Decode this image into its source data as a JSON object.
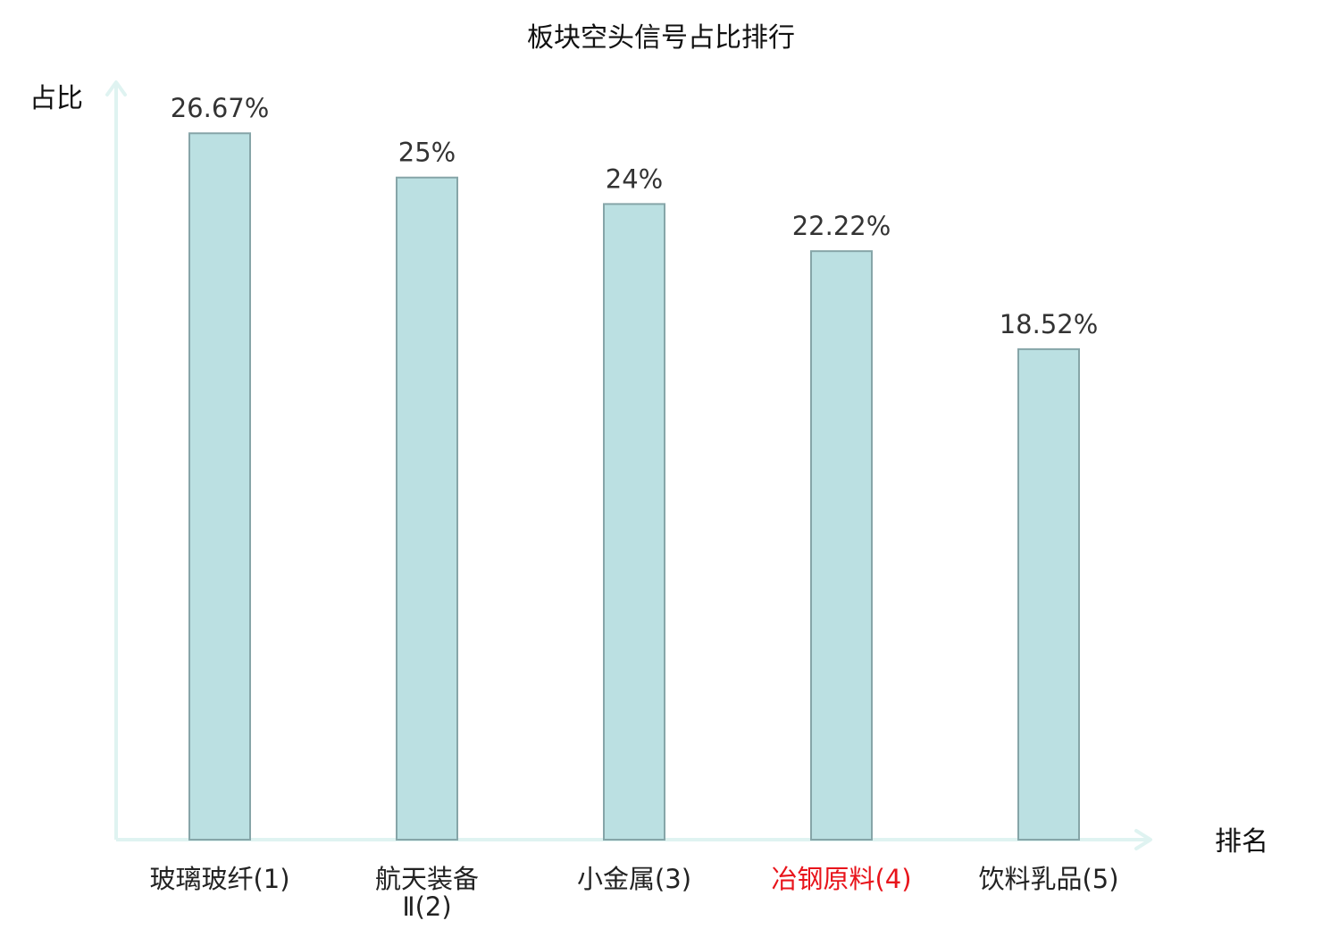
{
  "colors": {
    "bar_fill": "#bbe0e2",
    "bar_stroke": "#86a5a8",
    "axis": "#dff3f1",
    "label_default": "#222222",
    "label_highlight": "#e8141b"
  },
  "chart_data": {
    "type": "bar",
    "title": "板块空头信号占比排行",
    "xlabel": "排名",
    "ylabel": "占比",
    "ylim": [
      0,
      28.6
    ],
    "grid": false,
    "categories": [
      {
        "name_lines": [
          "玻璃玻纤"
        ],
        "rank": "(1)",
        "highlight": false
      },
      {
        "name_lines": [
          "航天装备",
          "Ⅱ"
        ],
        "rank": "(2)",
        "highlight": false
      },
      {
        "name_lines": [
          "小金属"
        ],
        "rank": "(3)",
        "highlight": false
      },
      {
        "name_lines": [
          "冶钢原料"
        ],
        "rank": "(4)",
        "highlight": true
      },
      {
        "name_lines": [
          "饮料乳品"
        ],
        "rank": "(5)",
        "highlight": false
      }
    ],
    "values": [
      26.67,
      25,
      24,
      22.22,
      18.52
    ],
    "value_labels": [
      "26.67%",
      "25%",
      "24%",
      "22.22%",
      "18.52%"
    ]
  }
}
